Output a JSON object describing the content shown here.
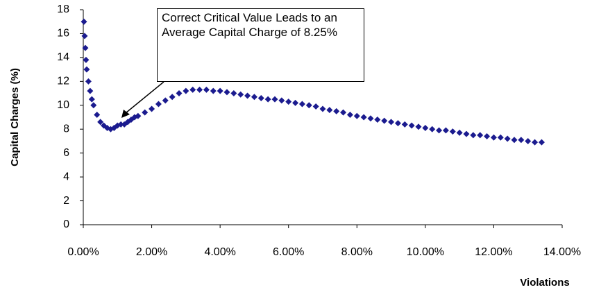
{
  "chart_data": {
    "type": "scatter",
    "annotation": "Correct Critical Value Leads to an Average Capital Charge of 8.25%",
    "x_label": "Violations",
    "y_label": "Capital Charges (%)",
    "x": [
      0.02,
      0.04,
      0.06,
      0.08,
      0.1,
      0.15,
      0.2,
      0.25,
      0.3,
      0.4,
      0.5,
      0.6,
      0.7,
      0.8,
      0.9,
      1.0,
      1.1,
      1.2,
      1.3,
      1.4,
      1.5,
      1.6,
      1.8,
      2.0,
      2.2,
      2.4,
      2.6,
      2.8,
      3.0,
      3.2,
      3.4,
      3.6,
      3.8,
      4.0,
      4.2,
      4.4,
      4.6,
      4.8,
      5.0,
      5.2,
      5.4,
      5.6,
      5.8,
      6.0,
      6.2,
      6.4,
      6.6,
      6.8,
      7.0,
      7.2,
      7.4,
      7.6,
      7.8,
      8.0,
      8.2,
      8.4,
      8.6,
      8.8,
      9.0,
      9.2,
      9.4,
      9.6,
      9.8,
      10.0,
      10.2,
      10.4,
      10.6,
      10.8,
      11.0,
      11.2,
      11.4,
      11.6,
      11.8,
      12.0,
      12.2,
      12.4,
      12.6,
      12.8,
      13.0,
      13.2,
      13.4
    ],
    "series": [
      {
        "color": "#1b1b8f",
        "values": [
          17.0,
          15.8,
          14.8,
          13.8,
          13.0,
          12.0,
          11.2,
          10.5,
          10.0,
          9.2,
          8.6,
          8.3,
          8.1,
          8.0,
          8.1,
          8.3,
          8.4,
          8.4,
          8.6,
          8.8,
          9.0,
          9.1,
          9.4,
          9.7,
          10.1,
          10.4,
          10.7,
          11.0,
          11.2,
          11.3,
          11.3,
          11.3,
          11.2,
          11.2,
          11.1,
          11.0,
          10.9,
          10.8,
          10.7,
          10.6,
          10.5,
          10.5,
          10.4,
          10.3,
          10.2,
          10.1,
          10.0,
          9.9,
          9.7,
          9.6,
          9.5,
          9.4,
          9.2,
          9.1,
          9.0,
          8.9,
          8.8,
          8.7,
          8.6,
          8.5,
          8.4,
          8.3,
          8.2,
          8.1,
          8.0,
          7.9,
          7.9,
          7.8,
          7.7,
          7.6,
          7.5,
          7.5,
          7.4,
          7.3,
          7.3,
          7.2,
          7.1,
          7.1,
          7.0,
          6.9,
          6.9
        ]
      }
    ],
    "xlim": [
      0,
      14
    ],
    "ylim": [
      0,
      18
    ],
    "xticks": [
      {
        "value": 0,
        "label": "0.00%"
      },
      {
        "value": 2,
        "label": "2.00%"
      },
      {
        "value": 4,
        "label": "4.00%"
      },
      {
        "value": 6,
        "label": "6.00%"
      },
      {
        "value": 8,
        "label": "8.00%"
      },
      {
        "value": 10,
        "label": "10.00%"
      },
      {
        "value": 12,
        "label": "12.00%"
      },
      {
        "value": 14,
        "label": "14.00%"
      }
    ],
    "yticks": [
      0,
      2,
      4,
      6,
      8,
      10,
      12,
      14,
      16,
      18
    ]
  }
}
